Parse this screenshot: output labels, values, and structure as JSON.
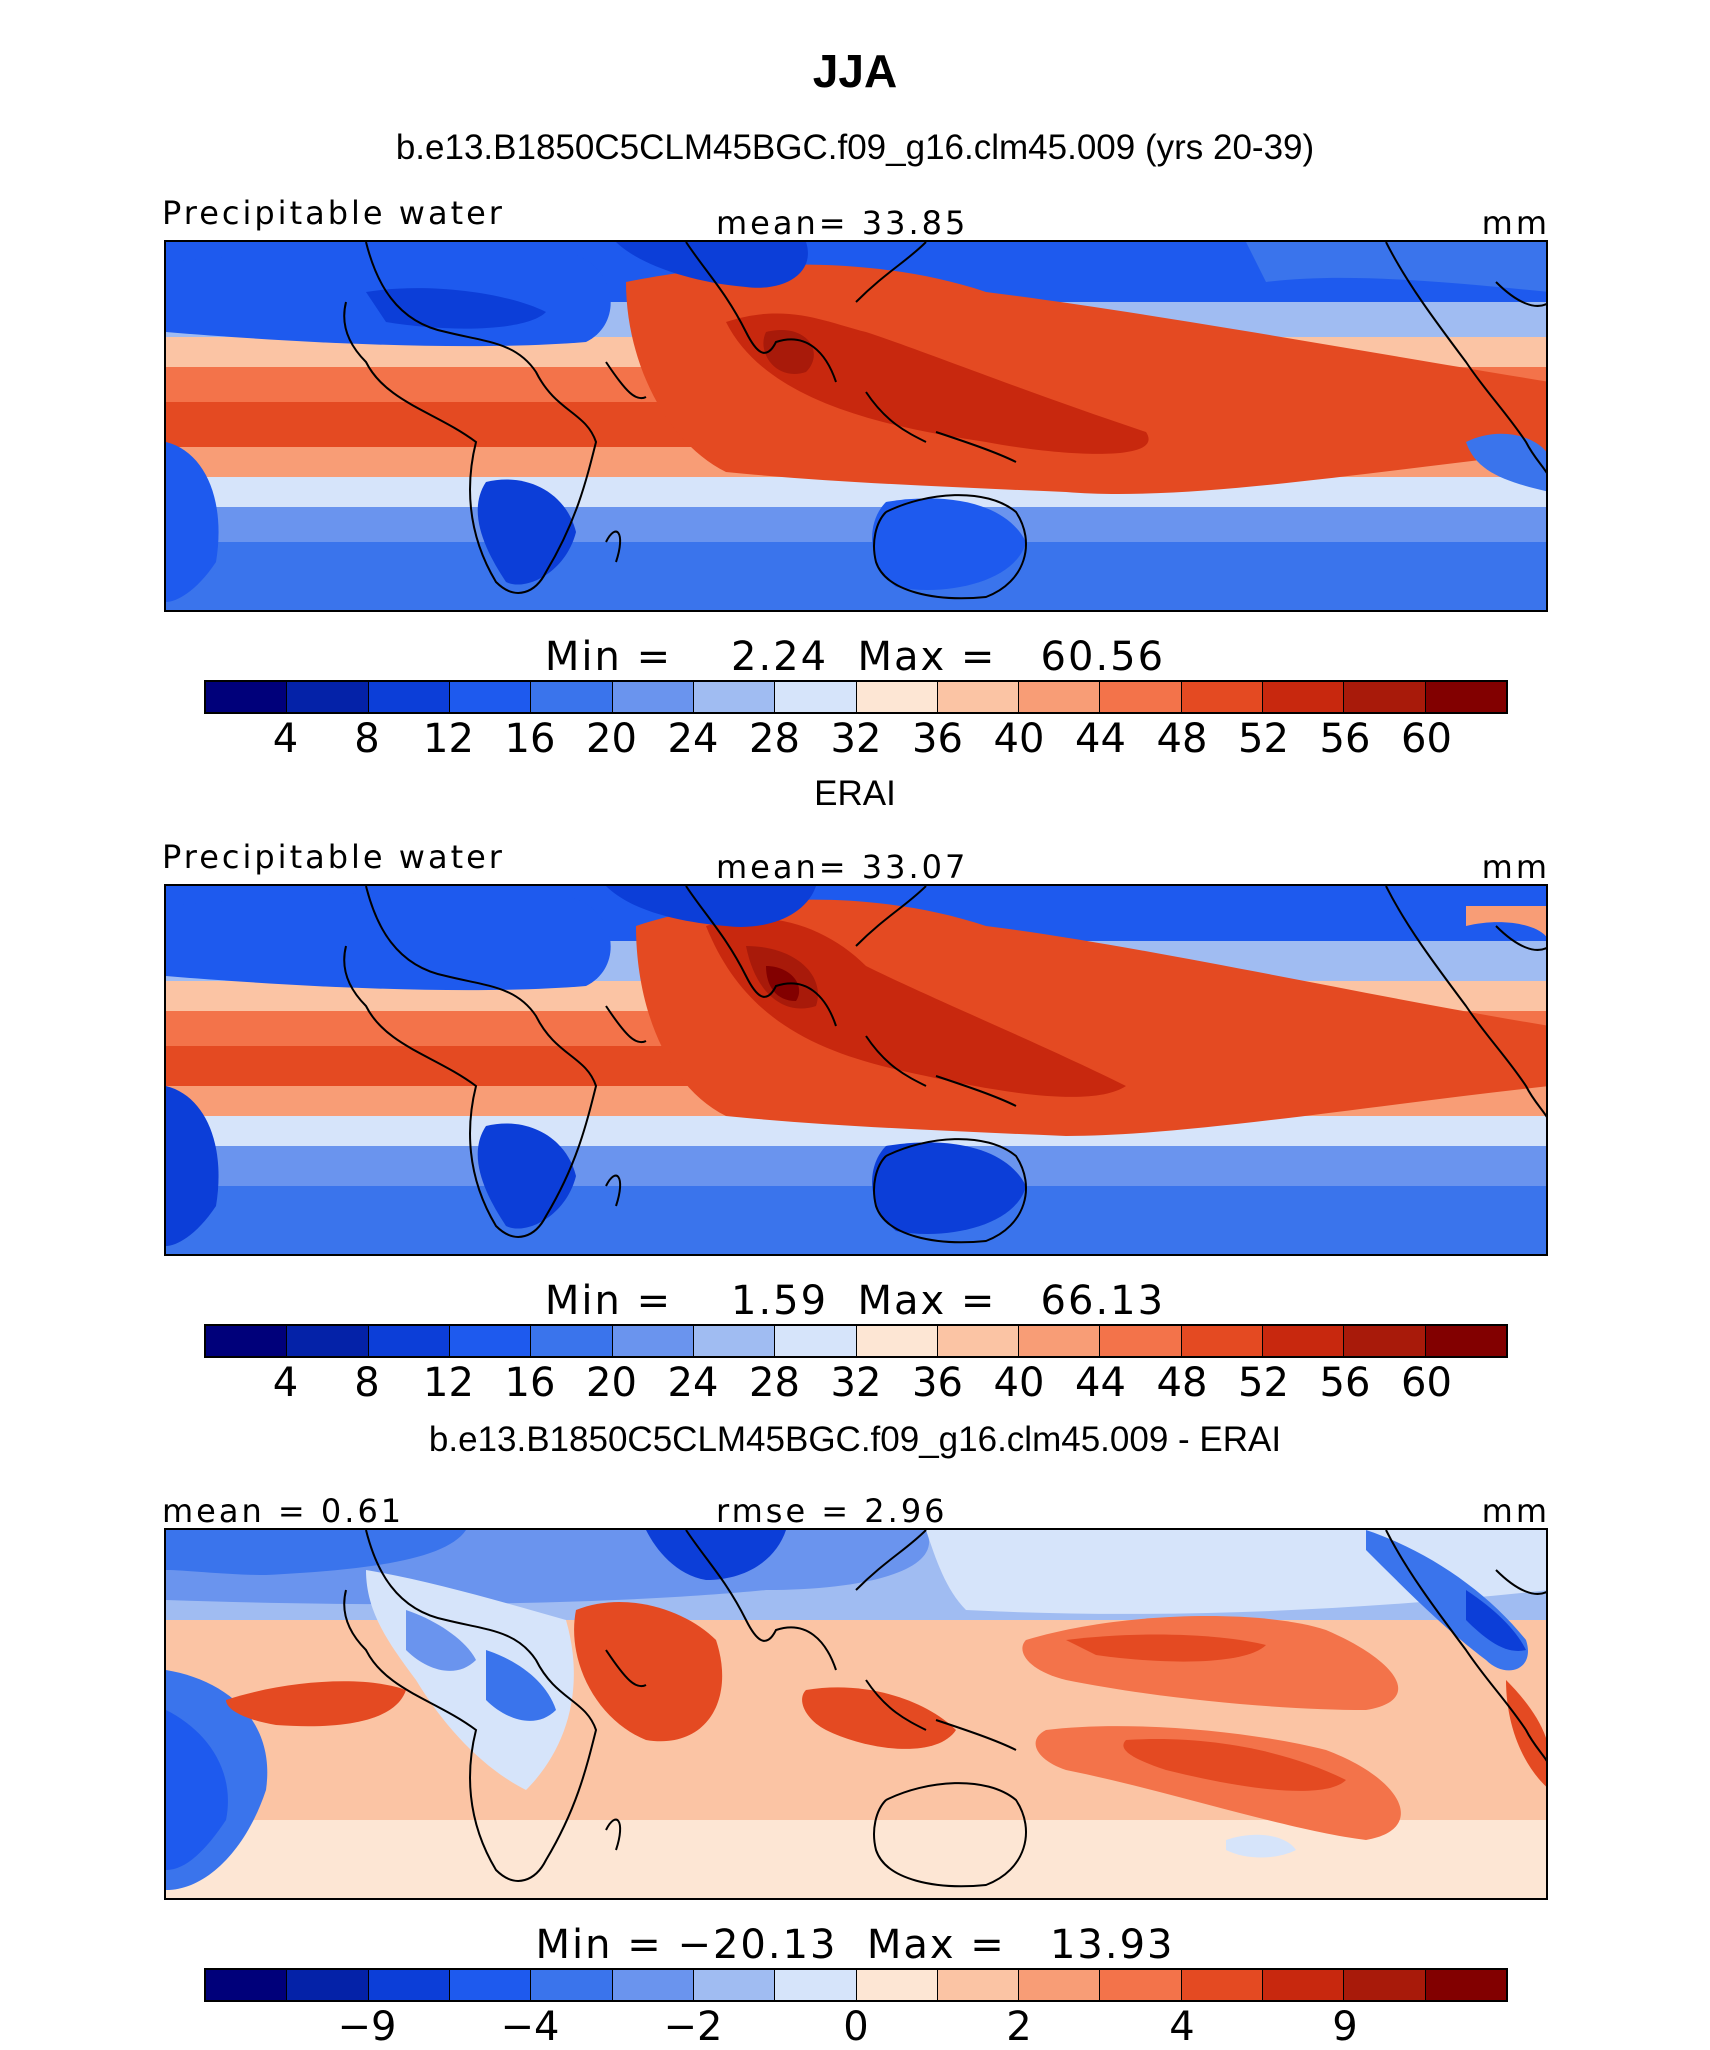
{
  "figure": {
    "title": "JJA",
    "colors_sequential": [
      "#00007a",
      "#0422a8",
      "#0c3ed8",
      "#1e5aee",
      "#3a74ec",
      "#6a94ee",
      "#a0bcf2",
      "#d6e4fa",
      "#fde6d4",
      "#fbc4a4",
      "#f89d76",
      "#f3734a",
      "#e44a22",
      "#c8280e",
      "#a81a0a",
      "#820000"
    ],
    "colors_diverging": [
      "#00007a",
      "#0422a8",
      "#0c3ed8",
      "#1e5aee",
      "#3a74ec",
      "#6a94ee",
      "#a0bcf2",
      "#d6e4fa",
      "#fde6d4",
      "#fbc4a4",
      "#f89d76",
      "#f3734a",
      "#e44a22",
      "#c8280e",
      "#a81a0a",
      "#820000"
    ]
  },
  "panels": [
    {
      "subtitle": "b.e13.B1850C5CLM45BGC.f09_g16.clm45.009 (yrs 20-39)",
      "left_label": "Precipitable water",
      "center_label": "mean=  33.85",
      "right_label": "mm",
      "stats": "Min =    2.24  Max =   60.56",
      "colorbar_ticks": [
        "4",
        "8",
        "12",
        "16",
        "20",
        "24",
        "28",
        "32",
        "36",
        "40",
        "44",
        "48",
        "52",
        "56",
        "60"
      ],
      "pattern": "model"
    },
    {
      "subtitle": "ERAI",
      "left_label": "Precipitable water",
      "center_label": "mean=  33.07",
      "right_label": "mm",
      "stats": "Min =    1.59  Max =   66.13",
      "colorbar_ticks": [
        "4",
        "8",
        "12",
        "16",
        "20",
        "24",
        "28",
        "32",
        "36",
        "40",
        "44",
        "48",
        "52",
        "56",
        "60"
      ],
      "pattern": "obs"
    },
    {
      "subtitle": "b.e13.B1850C5CLM45BGC.f09_g16.clm45.009 - ERAI",
      "left_label": "mean =   0.61",
      "center_label": "rmse =   2.96",
      "right_label": "mm",
      "stats": "Min = −20.13  Max =   13.93",
      "colorbar_ticks": [
        "−9",
        "−4",
        "−2",
        "0",
        "2",
        "4",
        "9"
      ],
      "pattern": "diff"
    }
  ]
}
